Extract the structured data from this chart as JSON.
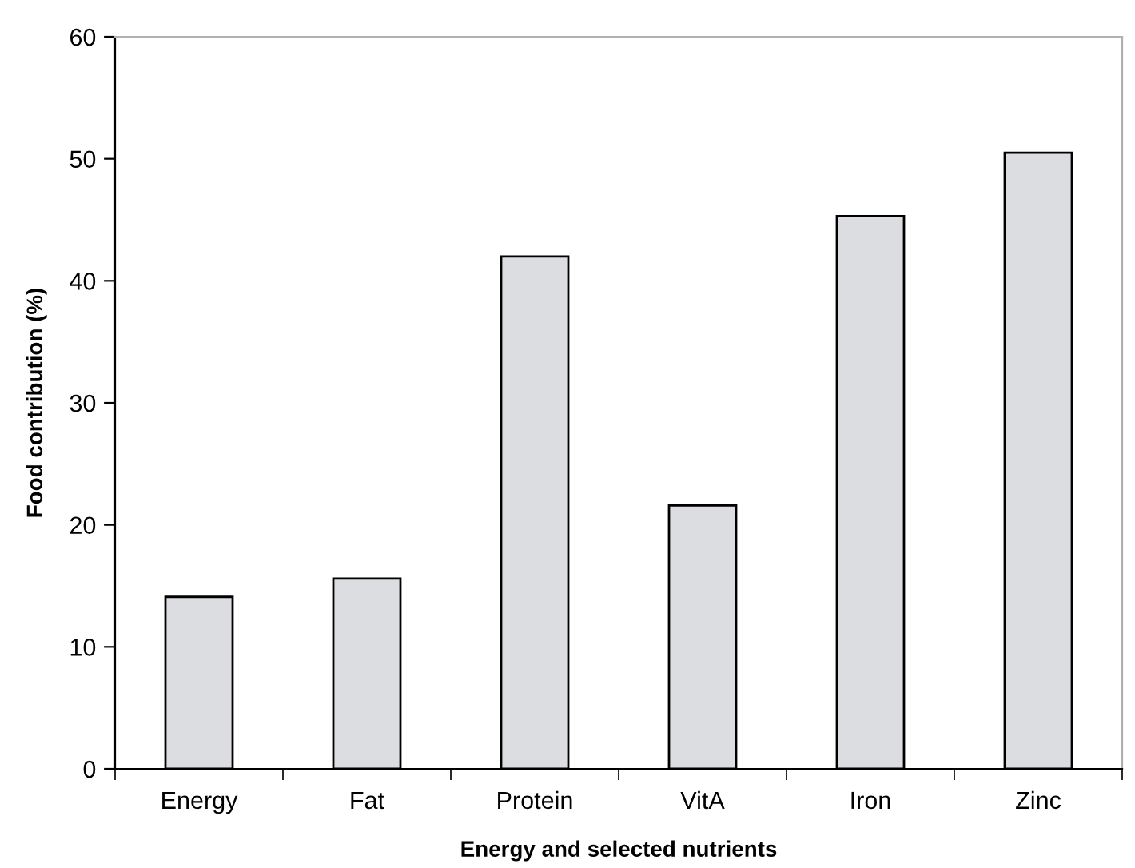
{
  "chart_data": {
    "type": "bar",
    "xlabel": "Energy and selected nutrients",
    "ylabel": "Food contribution (%)",
    "categories": [
      "Energy",
      "Fat",
      "Protein",
      "VitA",
      "Iron",
      "Zinc"
    ],
    "values": [
      14.1,
      15.6,
      42.0,
      21.6,
      45.3,
      50.5
    ],
    "color": "#dcdde0",
    "ylim": [
      0,
      60
    ],
    "yticks": [
      0,
      10,
      20,
      30,
      40,
      50,
      60
    ],
    "grid": false,
    "legend": false
  }
}
